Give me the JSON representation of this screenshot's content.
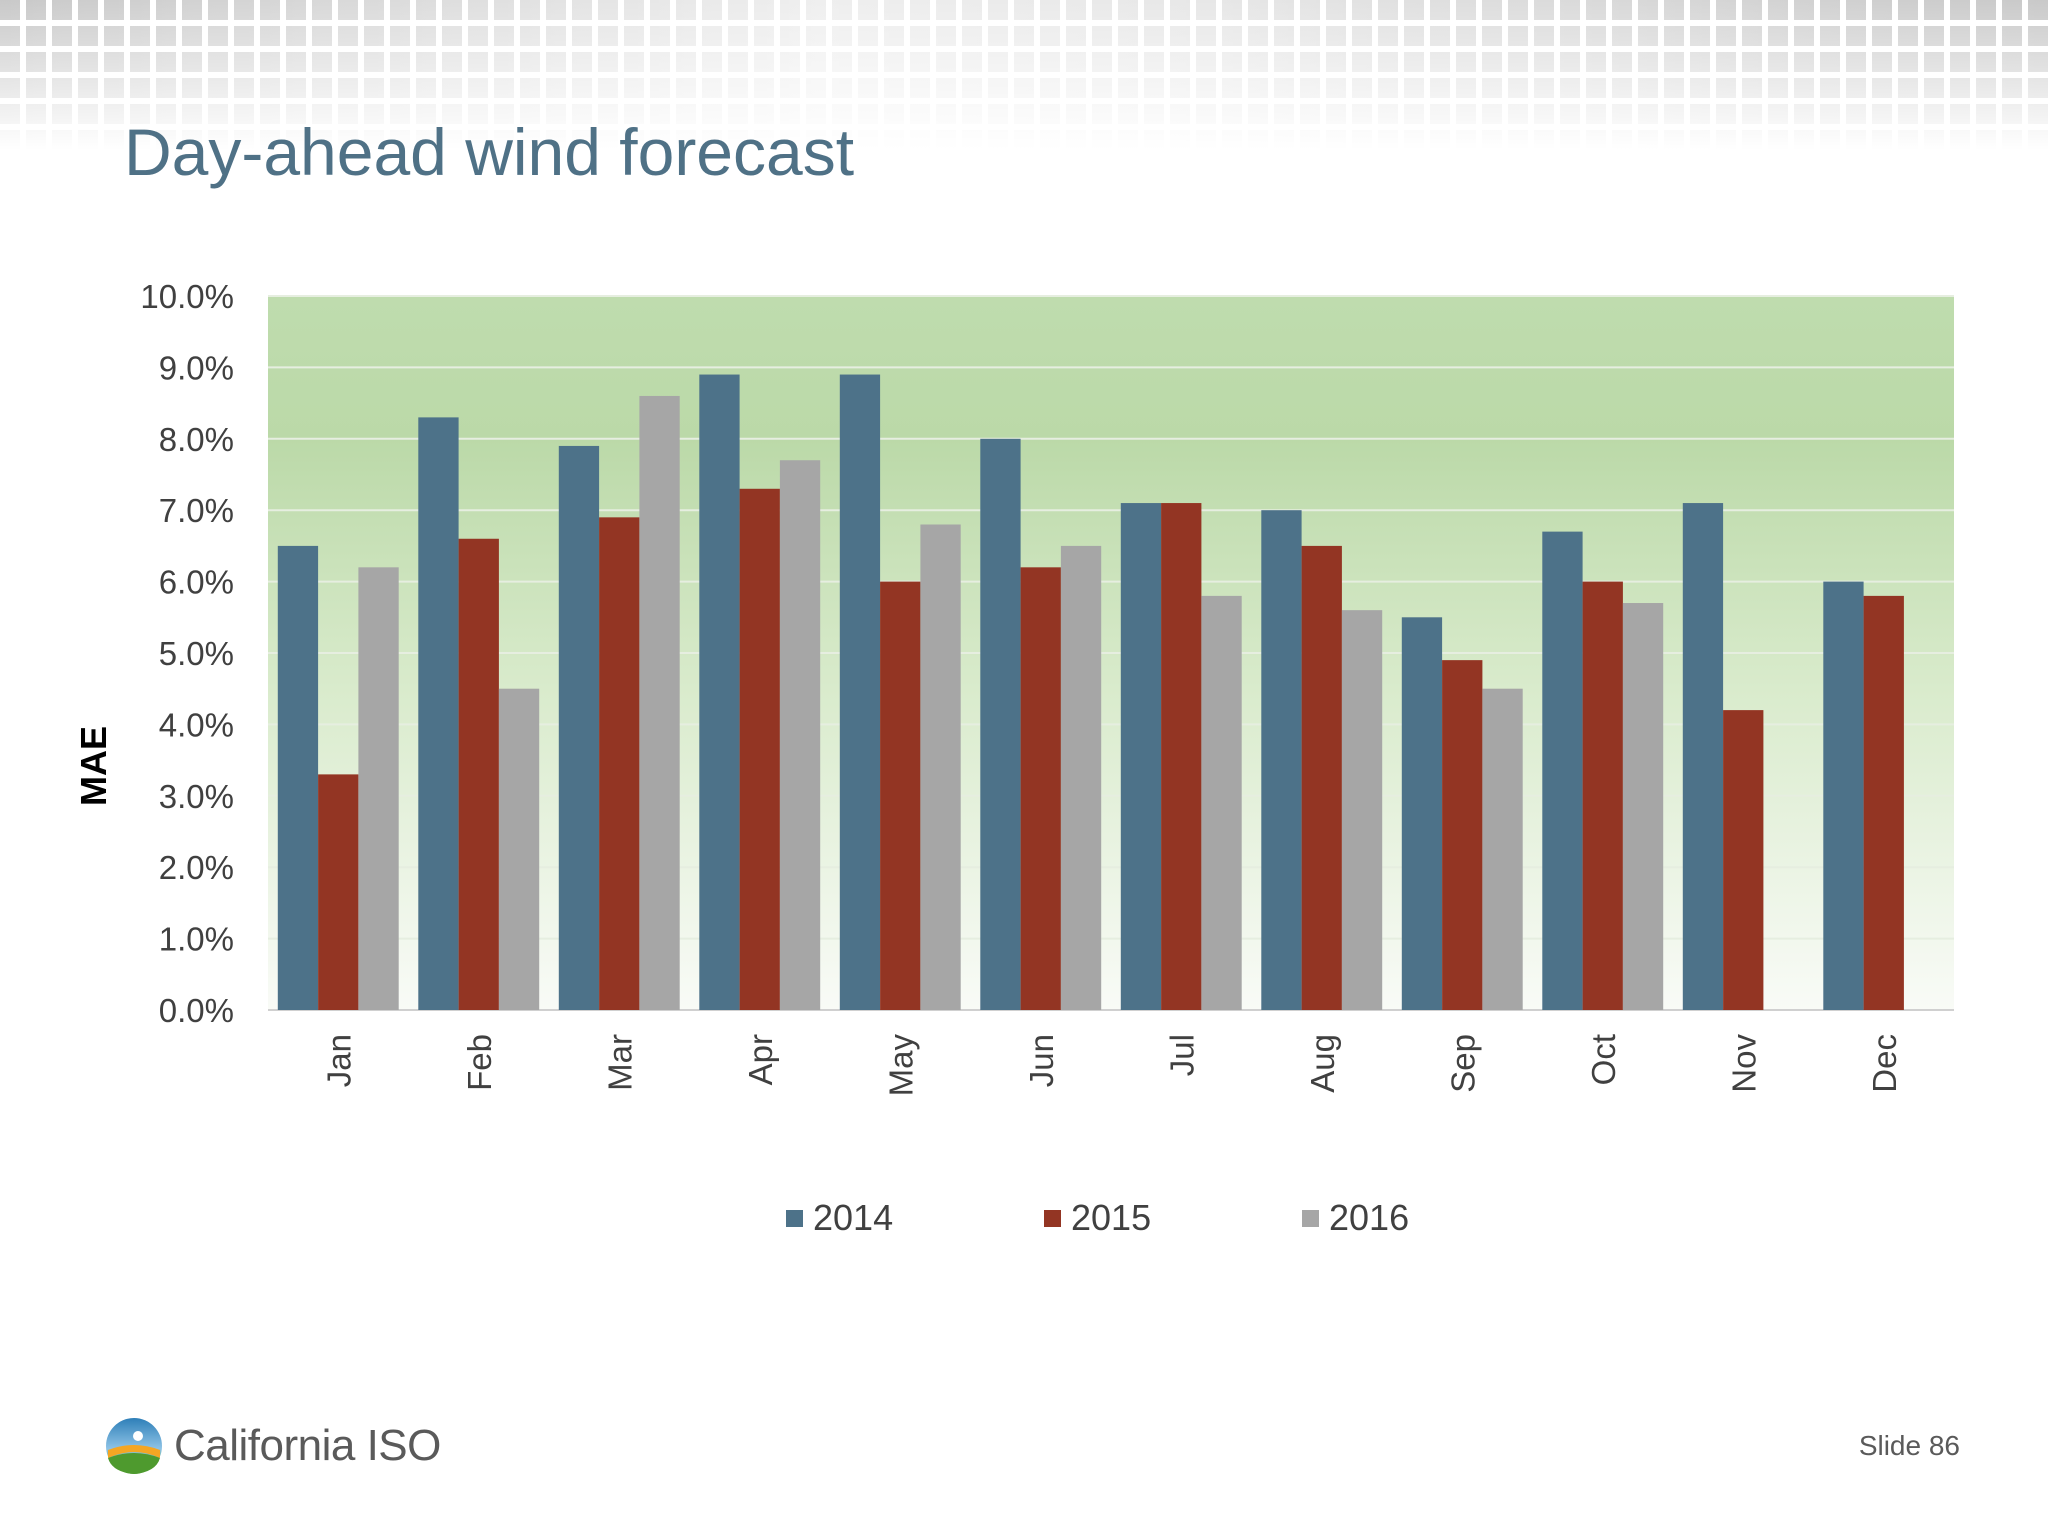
{
  "slide": {
    "title": "Day-ahead wind forecast",
    "slide_number": "Slide 86",
    "logo_text": "California ISO"
  },
  "colors": {
    "title": "#4f7186",
    "series_2014": "#4d7289",
    "series_2015": "#933523",
    "series_2016": "#a6a6a6",
    "plot_top": "#bfdcae",
    "plot_bottom": "#f9fbf7"
  },
  "chart_data": {
    "type": "bar",
    "title": "",
    "xlabel": "",
    "ylabel": "MAE",
    "ylim": [
      0,
      10
    ],
    "y_tick_values": [
      0,
      1,
      2,
      3,
      4,
      5,
      6,
      7,
      8,
      9,
      10
    ],
    "y_tick_labels": [
      "0.0%",
      "1.0%",
      "2.0%",
      "3.0%",
      "4.0%",
      "5.0%",
      "6.0%",
      "7.0%",
      "8.0%",
      "9.0%",
      "10.0%"
    ],
    "grid": true,
    "legend_position": "bottom",
    "categories": [
      "Jan",
      "Feb",
      "Mar",
      "Apr",
      "May",
      "Jun",
      "Jul",
      "Aug",
      "Sep",
      "Oct",
      "Nov",
      "Dec"
    ],
    "series": [
      {
        "name": "2014",
        "color": "#4d7289",
        "values": [
          6.5,
          8.3,
          7.9,
          8.9,
          8.9,
          8.0,
          7.1,
          7.0,
          5.5,
          6.7,
          7.1,
          6.0
        ]
      },
      {
        "name": "2015",
        "color": "#933523",
        "values": [
          3.3,
          6.6,
          6.9,
          7.3,
          6.0,
          6.2,
          7.1,
          6.5,
          4.9,
          6.0,
          4.2,
          5.8
        ]
      },
      {
        "name": "2016",
        "color": "#a6a6a6",
        "values": [
          6.2,
          4.5,
          8.6,
          7.7,
          6.8,
          6.5,
          5.8,
          5.6,
          4.5,
          5.7,
          null,
          null
        ]
      }
    ]
  }
}
